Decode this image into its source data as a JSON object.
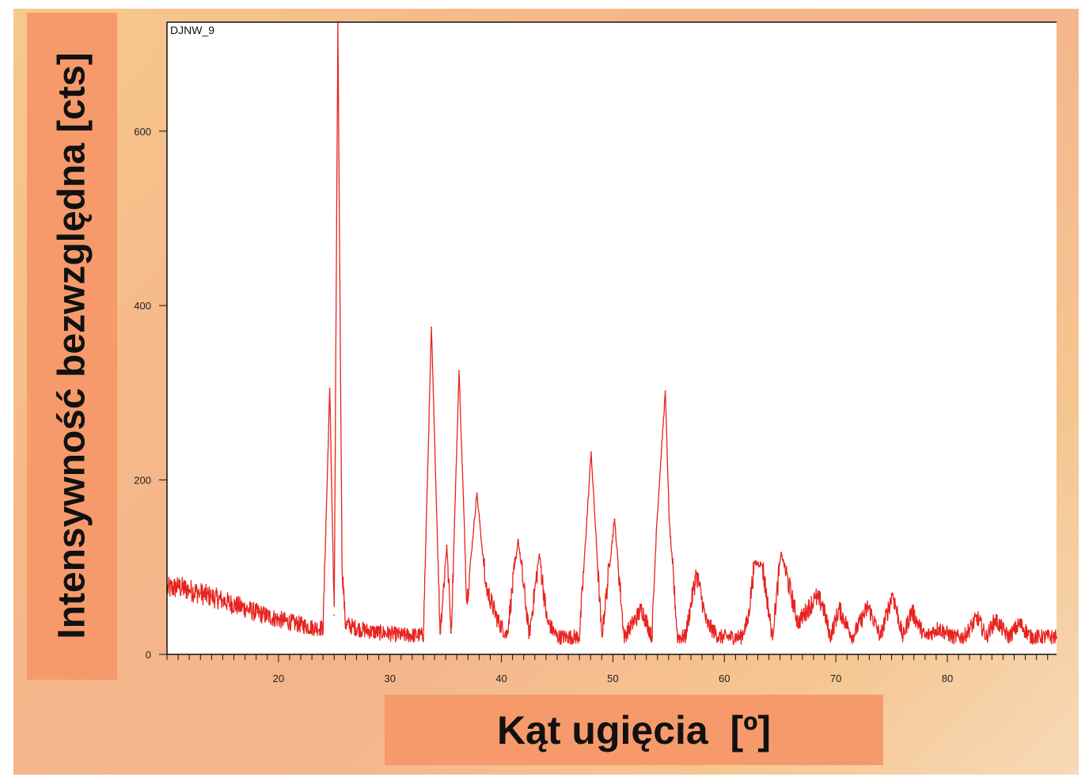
{
  "chart_data": {
    "type": "line",
    "title": "DJNW_9",
    "xlabel": "Kąt ugięcia  [º]",
    "ylabel": "Intensywność bezwzględna [cts]",
    "xlim": [
      10.0,
      89.8
    ],
    "ylim": [
      0,
      725
    ],
    "xticks": [
      20,
      30,
      40,
      50,
      60,
      70,
      80
    ],
    "yticks": [
      0,
      200,
      400,
      600
    ],
    "grid": false,
    "legend": "none",
    "series": [
      {
        "color": "#e8231f",
        "x": [
          10,
          11,
          12,
          13,
          14,
          15,
          16,
          17,
          18,
          19,
          20,
          21,
          22,
          23,
          24,
          24.6,
          25.0,
          25.33,
          25.7,
          26,
          27,
          28,
          29,
          30,
          31,
          32,
          33,
          33.72,
          34.5,
          35.1,
          35.5,
          36.2,
          36.9,
          37.8,
          38.6,
          39.7,
          40.5,
          41.5,
          42.5,
          43.4,
          44.1,
          45,
          46,
          47,
          48.05,
          49,
          50.15,
          51,
          52.6,
          53.5,
          53.9,
          54.7,
          55.05,
          55.8,
          56.5,
          57.5,
          58.4,
          59.5,
          60.5,
          61.5,
          62.1,
          62.7,
          63.4,
          64.3,
          65.1,
          66.6,
          68.2,
          68.8,
          69.5,
          70.3,
          71.5,
          72.9,
          74.0,
          75.1,
          76.0,
          76.8,
          78.0,
          79.2,
          80.5,
          81.5,
          82.7,
          83.5,
          84.3,
          85.5,
          86.5,
          87.5,
          88.5,
          89.8
        ],
        "y": [
          75,
          77,
          74,
          70,
          66,
          62,
          57,
          53,
          48,
          44,
          40,
          37,
          34,
          31,
          30,
          305,
          45,
          725,
          105,
          35,
          30,
          27,
          25,
          24,
          22,
          22,
          22,
          375,
          25,
          125,
          25,
          325,
          60,
          185,
          78,
          38,
          22,
          132,
          22,
          115,
          38,
          20,
          20,
          20,
          232,
          20,
          155,
          20,
          52,
          20,
          142,
          302,
          155,
          20,
          20,
          94,
          36,
          20,
          20,
          20,
          38,
          105,
          103,
          20,
          117,
          36,
          65,
          58,
          20,
          52,
          20,
          55,
          20,
          70,
          20,
          50,
          20,
          30,
          20,
          20,
          42,
          20,
          40,
          20,
          35,
          20,
          20,
          20
        ]
      }
    ]
  }
}
